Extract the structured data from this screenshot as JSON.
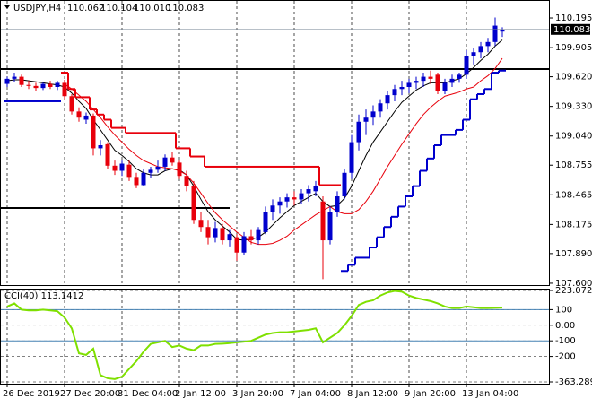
{
  "chart_data": [
    {
      "type": "candlestick",
      "title": "USDJPY,H4",
      "quote": [
        "110.062",
        "110.104",
        "110.010",
        "110.083"
      ],
      "categories": [
        "26 Dec 2019",
        null,
        null,
        null,
        null,
        null,
        null,
        null,
        "27 Dec 20:00",
        null,
        null,
        null,
        null,
        null,
        null,
        null,
        "31 Dec 04:00",
        null,
        null,
        null,
        null,
        null,
        null,
        null,
        "2 Jan 12:00",
        null,
        null,
        null,
        null,
        null,
        null,
        null,
        "3 Jan 20:00",
        null,
        null,
        null,
        null,
        null,
        null,
        null,
        "7 Jan 04:00",
        null,
        null,
        null,
        null,
        null,
        null,
        null,
        "8 Jan 12:00",
        null,
        null,
        null,
        null,
        null,
        null,
        null,
        "9 Jan 20:00",
        null,
        null,
        null,
        null,
        null,
        null,
        null,
        "13 Jan 04:00",
        null,
        null,
        null,
        null,
        null
      ],
      "open": [
        109.55,
        109.6,
        109.62,
        109.54,
        109.53,
        109.51,
        109.55,
        109.52,
        109.56,
        109.43,
        109.28,
        109.2,
        109.24,
        108.92,
        108.96,
        108.75,
        108.7,
        108.76,
        108.64,
        108.56,
        108.68,
        108.71,
        108.74,
        108.83,
        108.78,
        108.65,
        108.55,
        108.22,
        108.15,
        108.05,
        108.14,
        108.02,
        108.05,
        107.9,
        108.06,
        108.02,
        108.1,
        108.3,
        108.36,
        108.4,
        108.44,
        108.42,
        108.48,
        108.5,
        108.4,
        108.02,
        108.3,
        108.45,
        108.68,
        108.98,
        109.18,
        109.22,
        109.28,
        109.36,
        109.44,
        109.5,
        109.52,
        109.56,
        109.58,
        109.62,
        109.64,
        109.48,
        109.56,
        109.6,
        109.64,
        109.82,
        109.86,
        109.92,
        109.96,
        110.062
      ],
      "high": [
        109.62,
        109.66,
        109.64,
        109.58,
        109.56,
        109.57,
        109.58,
        109.58,
        109.59,
        109.45,
        109.32,
        109.27,
        109.26,
        109.0,
        108.98,
        108.8,
        108.8,
        108.8,
        108.68,
        108.72,
        108.74,
        108.8,
        108.86,
        108.88,
        108.8,
        108.7,
        108.6,
        108.3,
        108.22,
        108.2,
        108.18,
        108.12,
        108.08,
        108.1,
        108.12,
        108.15,
        108.35,
        108.42,
        108.44,
        108.48,
        108.5,
        108.52,
        108.56,
        108.6,
        108.45,
        108.35,
        108.5,
        108.72,
        109.05,
        109.25,
        109.3,
        109.34,
        109.4,
        109.48,
        109.54,
        109.58,
        109.6,
        109.62,
        109.66,
        109.68,
        109.66,
        109.6,
        109.64,
        109.66,
        109.88,
        109.9,
        109.96,
        110.0,
        110.2,
        110.104
      ],
      "low": [
        109.52,
        109.57,
        109.52,
        109.5,
        109.48,
        109.49,
        109.5,
        109.49,
        109.4,
        109.25,
        109.18,
        109.16,
        108.85,
        108.85,
        108.72,
        108.66,
        108.65,
        108.6,
        108.53,
        108.55,
        108.63,
        108.68,
        108.7,
        108.75,
        108.62,
        108.5,
        108.18,
        108.1,
        107.98,
        108.0,
        107.98,
        107.96,
        107.82,
        107.88,
        107.98,
        107.98,
        108.08,
        108.22,
        108.28,
        108.34,
        108.36,
        108.38,
        108.4,
        108.45,
        107.64,
        107.98,
        108.25,
        108.42,
        108.62,
        108.9,
        109.05,
        109.15,
        109.22,
        109.3,
        109.38,
        109.44,
        109.46,
        109.5,
        109.52,
        109.55,
        109.45,
        109.45,
        109.52,
        109.56,
        109.6,
        109.74,
        109.8,
        109.86,
        109.92,
        110.01
      ],
      "close": [
        109.6,
        109.62,
        109.54,
        109.53,
        109.51,
        109.55,
        109.52,
        109.56,
        109.43,
        109.28,
        109.22,
        109.24,
        108.92,
        108.95,
        108.75,
        108.7,
        108.77,
        108.64,
        108.56,
        108.68,
        108.71,
        108.74,
        108.83,
        108.78,
        108.65,
        108.55,
        108.22,
        108.15,
        108.05,
        108.14,
        108.02,
        108.08,
        107.9,
        108.06,
        108.02,
        108.12,
        108.3,
        108.36,
        108.4,
        108.44,
        108.42,
        108.48,
        108.52,
        108.55,
        108.02,
        108.3,
        108.45,
        108.68,
        108.98,
        109.18,
        109.22,
        109.28,
        109.36,
        109.44,
        109.5,
        109.52,
        109.56,
        109.58,
        109.62,
        109.6,
        109.48,
        109.56,
        109.6,
        109.64,
        109.82,
        109.86,
        109.92,
        109.96,
        110.12,
        110.083
      ],
      "up_color": "#0000cd",
      "down_color": "#e8000b",
      "overlays": [
        {
          "color": "#000000",
          "values": [
            109.58,
            109.59,
            109.59,
            109.58,
            109.57,
            109.56,
            109.55,
            109.54,
            109.52,
            109.46,
            109.38,
            109.31,
            109.2,
            109.1,
            109.0,
            108.9,
            108.85,
            108.79,
            108.72,
            108.68,
            108.66,
            108.66,
            108.7,
            108.72,
            108.71,
            108.66,
            108.55,
            108.42,
            108.3,
            108.22,
            108.16,
            108.1,
            108.03,
            108.02,
            108.03,
            108.05,
            108.1,
            108.17,
            108.24,
            108.3,
            108.36,
            108.4,
            108.44,
            108.48,
            108.4,
            108.35,
            108.36,
            108.43,
            108.55,
            108.7,
            108.85,
            108.98,
            109.08,
            109.18,
            109.28,
            109.37,
            109.43,
            109.49,
            109.53,
            109.56,
            109.56,
            109.56,
            109.58,
            109.6,
            109.65,
            109.71,
            109.78,
            109.84,
            109.92,
            109.98
          ]
        },
        {
          "color": "#e8000b",
          "values": [
            null,
            null,
            null,
            null,
            null,
            null,
            null,
            null,
            109.55,
            109.5,
            109.44,
            109.38,
            109.3,
            109.22,
            109.13,
            109.05,
            108.98,
            108.91,
            108.85,
            108.8,
            108.77,
            108.74,
            108.73,
            108.72,
            108.7,
            108.66,
            108.58,
            108.48,
            108.38,
            108.29,
            108.22,
            108.16,
            108.1,
            108.05,
            108.0,
            107.98,
            107.98,
            107.99,
            108.02,
            108.06,
            108.12,
            108.17,
            108.22,
            108.27,
            108.31,
            108.35,
            108.3,
            108.28,
            108.28,
            108.32,
            108.4,
            108.5,
            108.62,
            108.74,
            108.85,
            108.96,
            109.06,
            109.16,
            109.25,
            109.32,
            109.38,
            109.43,
            109.45,
            109.47,
            109.5,
            109.52,
            109.58,
            109.63,
            109.7,
            109.8
          ]
        },
        {
          "color": "#e8000b",
          "style": "step",
          "values": [
            null,
            null,
            null,
            null,
            null,
            null,
            null,
            null,
            109.66,
            109.5,
            109.42,
            109.42,
            109.3,
            109.25,
            109.2,
            109.12,
            109.12,
            109.07,
            109.07,
            109.07,
            109.07,
            109.07,
            109.07,
            109.07,
            108.92,
            108.92,
            108.84,
            108.84,
            108.74,
            108.74,
            108.74,
            108.74,
            108.74,
            108.74,
            108.74,
            108.74,
            108.74,
            108.74,
            108.74,
            108.74,
            108.74,
            108.74,
            108.74,
            108.74,
            108.56,
            108.56,
            108.56,
            null,
            null,
            null,
            null,
            null,
            null,
            null,
            null,
            null,
            null,
            null,
            null,
            null,
            null,
            null,
            null,
            null,
            null,
            null,
            null,
            null,
            null,
            null
          ]
        },
        {
          "color": "#0000cd",
          "style": "step",
          "values": [
            109.38,
            109.38,
            109.38,
            109.38,
            109.38,
            109.38,
            109.38,
            109.38,
            null,
            null,
            null,
            null,
            null,
            null,
            null,
            null,
            null,
            null,
            null,
            null,
            null,
            null,
            null,
            null,
            null,
            null,
            null,
            null,
            null,
            null,
            null,
            null,
            null,
            null,
            null,
            null,
            null,
            null,
            null,
            null,
            null,
            null,
            null,
            null,
            null,
            null,
            null,
            107.72,
            107.78,
            107.85,
            107.85,
            107.95,
            108.05,
            108.15,
            108.25,
            108.35,
            108.45,
            108.55,
            108.7,
            108.82,
            108.95,
            109.05,
            109.05,
            109.1,
            109.2,
            109.4,
            109.45,
            109.5,
            109.66,
            109.68
          ]
        }
      ],
      "levels": [
        {
          "value": 109.695
        },
        {
          "value": 108.336,
          "end": 31
        }
      ],
      "last": {
        "value": 110.083,
        "label": "110.083"
      },
      "ylim": [
        107.582,
        110.353
      ],
      "yticks": [
        {
          "value": 110.195,
          "label": "110.195"
        },
        {
          "value": 109.905,
          "label": "109.905"
        },
        {
          "value": 109.62,
          "label": "109.620"
        },
        {
          "value": 109.33,
          "label": "109.330"
        },
        {
          "value": 109.04,
          "label": "109.040"
        },
        {
          "value": 108.755,
          "label": "108.755"
        },
        {
          "value": 108.465,
          "label": "108.465"
        },
        {
          "value": 108.175,
          "label": "108.175"
        },
        {
          "value": 107.89,
          "label": "107.890"
        },
        {
          "value": 107.6,
          "label": "107.600"
        }
      ],
      "grid": true
    },
    {
      "type": "line",
      "title": "CCI(40) 113.1412",
      "color": "#7fe000",
      "values": [
        120,
        140,
        100,
        95,
        95,
        100,
        95,
        90,
        50,
        -20,
        -180,
        -190,
        -150,
        -320,
        -340,
        -345,
        -330,
        -280,
        -230,
        -170,
        -120,
        -110,
        -100,
        -140,
        -130,
        -150,
        -160,
        -130,
        -130,
        -120,
        -118,
        -115,
        -110,
        -105,
        -100,
        -80,
        -60,
        -50,
        -45,
        -45,
        -40,
        -35,
        -30,
        -20,
        -110,
        -80,
        -50,
        0,
        60,
        130,
        150,
        160,
        190,
        210,
        220,
        215,
        190,
        175,
        165,
        155,
        140,
        120,
        110,
        110,
        120,
        115,
        110,
        110,
        112,
        113.1412
      ],
      "levels": [
        100,
        -100
      ],
      "level_color": "#4682b4",
      "ylim": [
        -363.2895,
        223.0724
      ],
      "yticks": [
        223.0724,
        100,
        {
          "value": 0,
          "label": "0.00"
        },
        -100,
        -200,
        -363.2895
      ]
    }
  ]
}
